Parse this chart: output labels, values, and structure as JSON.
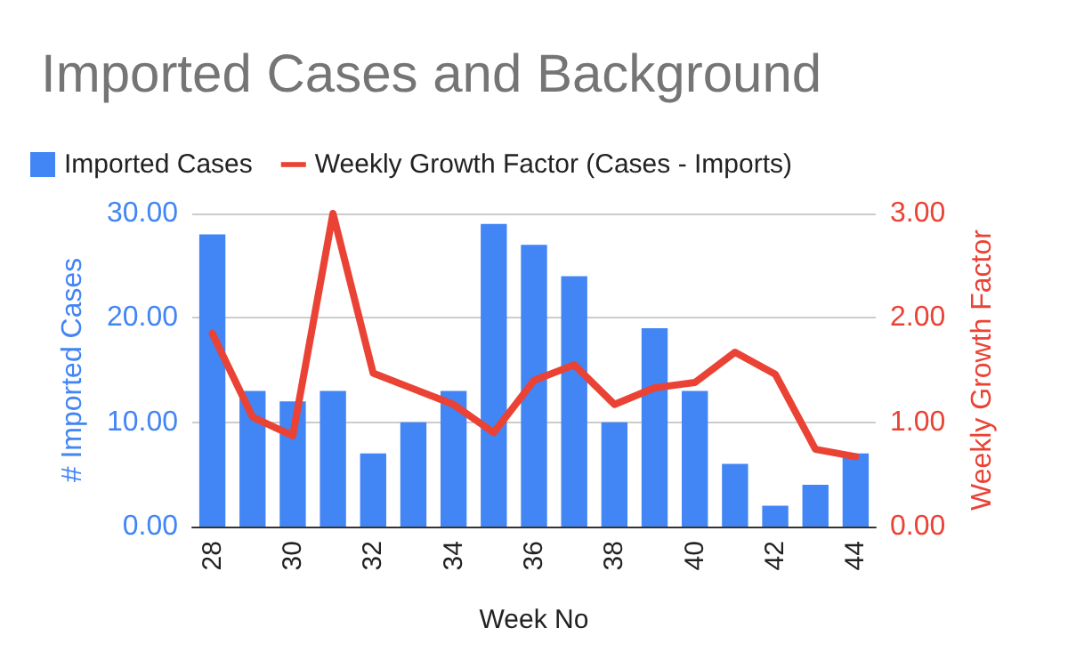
{
  "chart_data": {
    "type": "bar",
    "title": "Imported Cases and Background",
    "xlabel": "Week No",
    "ylabel": "# Imported Cases",
    "y2label": "Weekly Growth Factor",
    "categories": [
      "28",
      null,
      "30",
      null,
      "32",
      null,
      "34",
      null,
      "36",
      null,
      "38",
      null,
      "40",
      null,
      "42",
      null,
      "44"
    ],
    "series": [
      {
        "name": "Imported Cases",
        "color": "#4285f4",
        "values": [
          28,
          13,
          12,
          13,
          7,
          10,
          13,
          29,
          27,
          24,
          10,
          19,
          13,
          6,
          2,
          4,
          7
        ]
      },
      {
        "name": "Weekly Growth Factor (Cases - Imports)",
        "type": "line",
        "axis": "y2",
        "color": "#ea4335",
        "values": [
          1.85,
          1.05,
          0.87,
          3.0,
          1.47,
          1.32,
          1.17,
          0.9,
          1.4,
          1.55,
          1.17,
          1.33,
          1.38,
          1.67,
          1.46,
          0.74,
          0.67
        ]
      }
    ],
    "ylim": [
      0,
      30
    ],
    "yticks": [
      {
        "value": 0,
        "label": "0.00"
      },
      {
        "value": 10,
        "label": "10.00"
      },
      {
        "value": 20,
        "label": "20.00"
      },
      {
        "value": 30,
        "label": "30.00"
      }
    ],
    "y2lim": [
      0,
      3
    ],
    "y2ticks": [
      {
        "value": 0,
        "label": "0.00"
      },
      {
        "value": 1,
        "label": "1.00"
      },
      {
        "value": 2,
        "label": "2.00"
      },
      {
        "value": 3,
        "label": "3.00"
      }
    ],
    "grid": "y",
    "legend": "top left",
    "marker": "none",
    "line_style": "solid"
  }
}
